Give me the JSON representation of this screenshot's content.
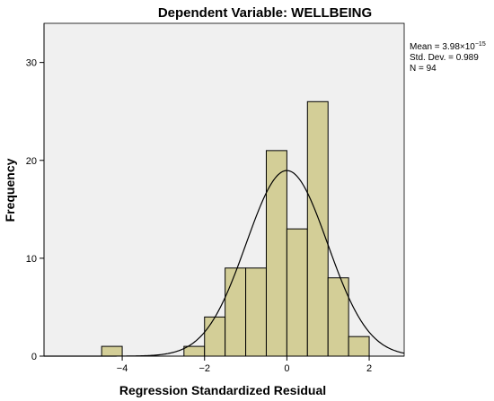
{
  "chart_data": {
    "type": "histogram",
    "title": "Dependent Variable: WELLBEING",
    "xlabel": "Regression Standardized Residual",
    "ylabel": "Frequency",
    "xlim": [
      -5.9,
      2.85
    ],
    "ylim": [
      0,
      34
    ],
    "x_ticks": [
      -4,
      -2,
      0,
      2
    ],
    "x_tick_labels": [
      "−4",
      "−2",
      "0",
      "2"
    ],
    "y_ticks": [
      0,
      10,
      20,
      30
    ],
    "y_tick_labels": [
      "0",
      "10",
      "20",
      "30"
    ],
    "bin_width": 0.5,
    "bins": [
      {
        "x0": -4.5,
        "x1": -4.0,
        "count": 1
      },
      {
        "x0": -2.5,
        "x1": -2.0,
        "count": 1
      },
      {
        "x0": -2.0,
        "x1": -1.5,
        "count": 4
      },
      {
        "x0": -1.5,
        "x1": -1.0,
        "count": 9
      },
      {
        "x0": -1.0,
        "x1": -0.5,
        "count": 9
      },
      {
        "x0": -0.5,
        "x1": 0.0,
        "count": 21
      },
      {
        "x0": 0.0,
        "x1": 0.5,
        "count": 13
      },
      {
        "x0": 0.5,
        "x1": 1.0,
        "count": 26
      },
      {
        "x0": 1.0,
        "x1": 1.5,
        "count": 8
      },
      {
        "x0": 1.5,
        "x1": 2.0,
        "count": 2
      }
    ],
    "normal_curve": {
      "mean": 0,
      "sd": 0.989,
      "n": 94
    },
    "grid": false,
    "legend_position": "right",
    "colors": {
      "plot_bg": "#f0f0f0",
      "bar_fill": "#d3ce97",
      "bar_stroke": "#000000",
      "curve": "#000000"
    }
  },
  "stats": {
    "mean_prefix": "Mean = 3.98×10",
    "mean_exponent": "−15",
    "std_dev": "Std. Dev. = 0.989",
    "n": "N = 94"
  }
}
